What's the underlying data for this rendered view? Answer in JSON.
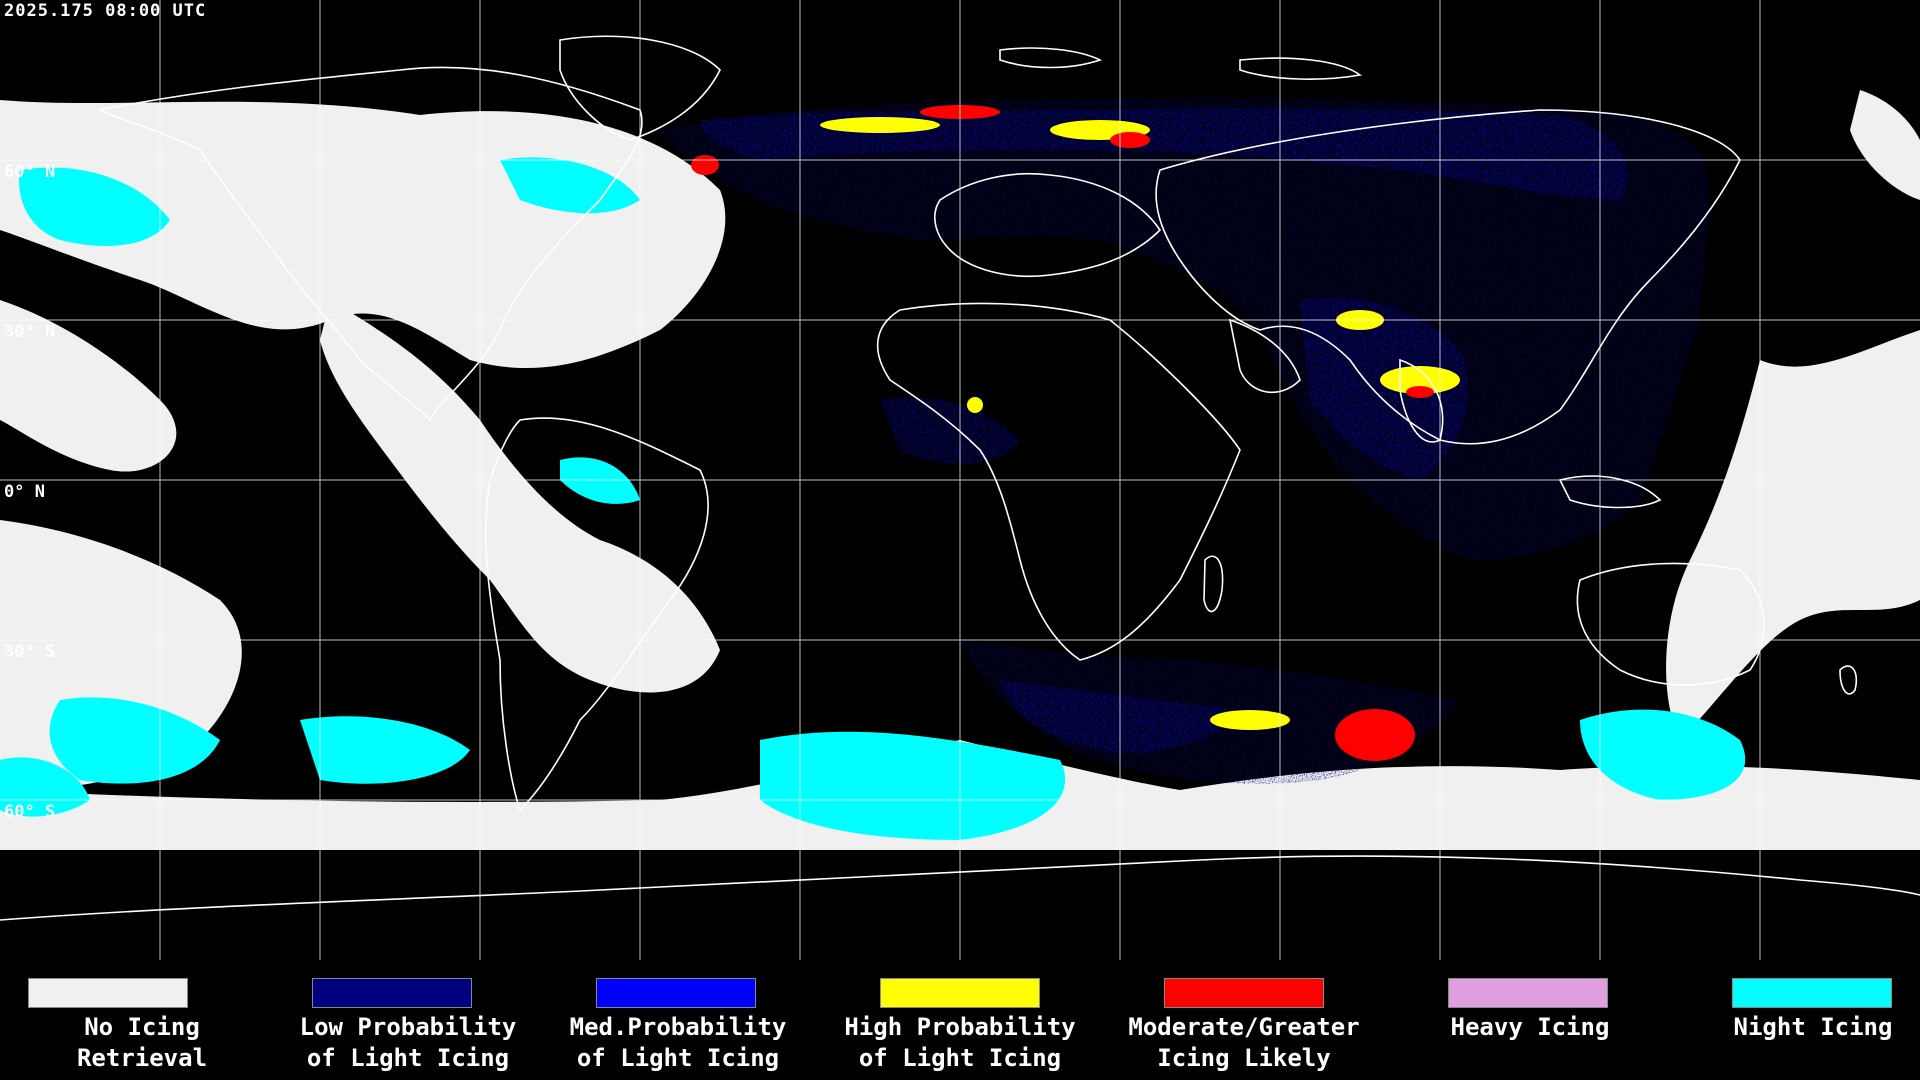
{
  "header": {
    "timestamp": "2025.175 08:00 UTC"
  },
  "latitude_labels": [
    "60° N",
    "30° N",
    "0° N",
    "30° S",
    "60° S"
  ],
  "legend": [
    {
      "line1": "No Icing",
      "line2": "Retrieval",
      "color": "#f0f0f0"
    },
    {
      "line1": "Low Probability",
      "line2": "of Light Icing",
      "color": "#000080"
    },
    {
      "line1": "Med.Probability",
      "line2": "of Light Icing",
      "color": "#0000ff"
    },
    {
      "line1": "High Probability",
      "line2": "of Light Icing",
      "color": "#ffff00"
    },
    {
      "line1": "Moderate/Greater",
      "line2": "Icing Likely",
      "color": "#ff0000"
    },
    {
      "line1": "Heavy Icing",
      "line2": "",
      "color": "#e0a0e0"
    },
    {
      "line1": "Night Icing",
      "line2": "",
      "color": "#00ffff"
    }
  ]
}
